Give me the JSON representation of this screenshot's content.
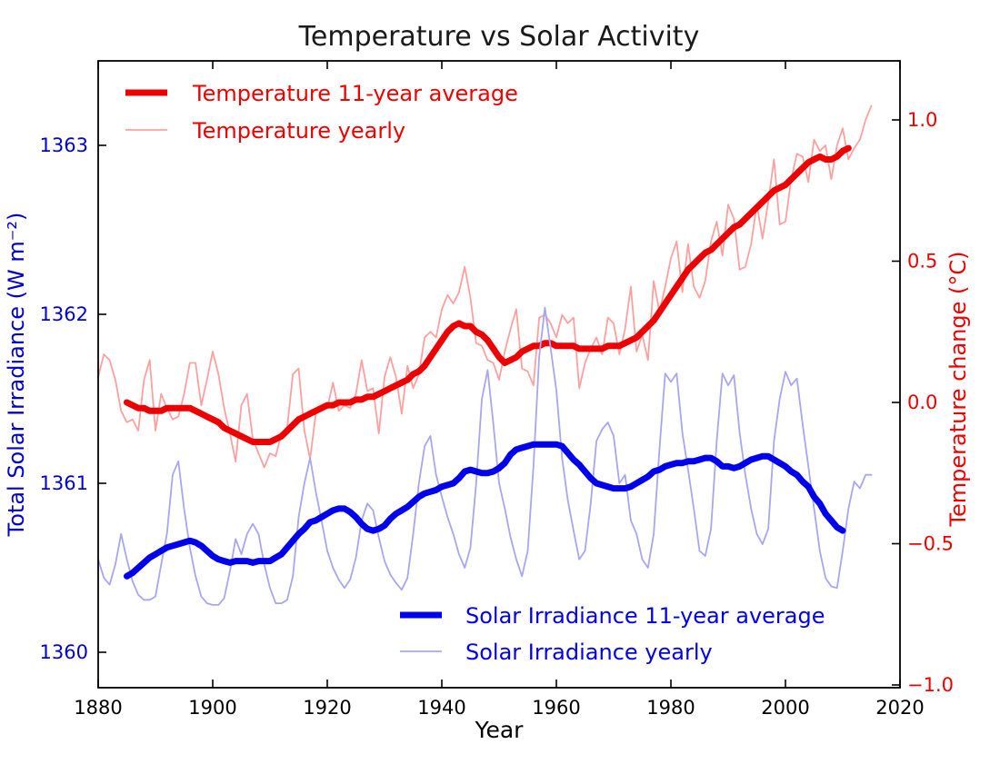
{
  "window": {
    "background": "#ffffff"
  },
  "colors": {
    "temp_avg": "#ee0000",
    "temp_yearly": "#ffa0a0",
    "tsi_avg": "#0000ee",
    "tsi_yearly": "#a6a6f2",
    "left_axis_text": "#0000cc",
    "right_axis_text": "#ee0000",
    "axis_line": "#000000",
    "title_text": "#1a1a1a"
  },
  "chart_data": {
    "type": "line",
    "title": "Temperature vs Solar Activity",
    "xlabel": "Year",
    "ylabel_left": "Total Solar Irradiance (W m⁻²)",
    "ylabel_right": "Temperature change (°C)",
    "grid": false,
    "x_range": [
      1880,
      2020
    ],
    "xticks": [
      1880,
      1900,
      1920,
      1940,
      1960,
      1980,
      2000,
      2020
    ],
    "yleft_range": [
      1359.79,
      1363.49
    ],
    "yleft_ticks": [
      1360,
      1361,
      1362,
      1363
    ],
    "yright_range": [
      -1.01,
      1.21
    ],
    "yright_ticks": [
      1.0,
      0.5,
      0.0,
      -0.5,
      -1.0
    ],
    "legend_top_entries": [
      "Temperature 11-year average",
      "Temperature yearly"
    ],
    "legend_bottom_entries": [
      "Solar Irradiance 11-year average",
      "Solar Irradiance yearly"
    ],
    "series": [
      {
        "name": "Temperature 11-year average",
        "axis": "right",
        "color": "#ee0000",
        "width": 7,
        "x_start": 1885,
        "x_step": 1,
        "values": [
          0.0,
          -0.01,
          -0.02,
          -0.02,
          -0.03,
          -0.03,
          -0.03,
          -0.02,
          -0.02,
          -0.02,
          -0.02,
          -0.02,
          -0.03,
          -0.04,
          -0.05,
          -0.06,
          -0.07,
          -0.09,
          -0.1,
          -0.11,
          -0.12,
          -0.13,
          -0.14,
          -0.14,
          -0.14,
          -0.14,
          -0.13,
          -0.12,
          -0.1,
          -0.08,
          -0.06,
          -0.05,
          -0.04,
          -0.03,
          -0.02,
          -0.01,
          -0.01,
          0.0,
          0.0,
          0.0,
          0.01,
          0.01,
          0.02,
          0.02,
          0.03,
          0.04,
          0.05,
          0.06,
          0.07,
          0.08,
          0.1,
          0.11,
          0.13,
          0.16,
          0.19,
          0.22,
          0.25,
          0.27,
          0.28,
          0.27,
          0.27,
          0.25,
          0.24,
          0.22,
          0.19,
          0.16,
          0.14,
          0.15,
          0.16,
          0.18,
          0.19,
          0.2,
          0.2,
          0.21,
          0.21,
          0.2,
          0.2,
          0.2,
          0.2,
          0.19,
          0.19,
          0.19,
          0.19,
          0.19,
          0.2,
          0.2,
          0.2,
          0.21,
          0.22,
          0.23,
          0.25,
          0.27,
          0.29,
          0.32,
          0.35,
          0.38,
          0.41,
          0.44,
          0.47,
          0.49,
          0.51,
          0.53,
          0.54,
          0.56,
          0.58,
          0.6,
          0.62,
          0.63,
          0.65,
          0.67,
          0.69,
          0.71,
          0.73,
          0.75,
          0.76,
          0.77,
          0.79,
          0.81,
          0.83,
          0.85,
          0.86,
          0.87,
          0.86,
          0.86,
          0.87,
          0.89,
          0.9
        ]
      },
      {
        "name": "Temperature yearly",
        "axis": "right",
        "color": "#ffa0a0",
        "width": 1.8,
        "x_start": 1880,
        "x_step": 1,
        "values": [
          0.09,
          0.17,
          0.15,
          0.08,
          -0.03,
          -0.07,
          -0.06,
          -0.1,
          0.08,
          0.15,
          -0.1,
          0.03,
          -0.02,
          -0.06,
          -0.05,
          0.03,
          0.14,
          0.14,
          -0.01,
          0.08,
          0.18,
          0.1,
          -0.02,
          -0.11,
          -0.21,
          -0.01,
          0.03,
          -0.13,
          -0.18,
          -0.23,
          -0.18,
          -0.19,
          -0.11,
          -0.09,
          0.1,
          0.12,
          -0.1,
          -0.2,
          -0.04,
          -0.02,
          -0.02,
          0.07,
          -0.03,
          -0.01,
          -0.02,
          0.03,
          0.15,
          0.04,
          0.05,
          -0.11,
          0.09,
          0.16,
          0.09,
          -0.04,
          0.13,
          0.05,
          0.1,
          0.23,
          0.25,
          0.23,
          0.33,
          0.38,
          0.35,
          0.39,
          0.48,
          0.37,
          0.21,
          0.2,
          0.15,
          0.14,
          0.08,
          0.18,
          0.26,
          0.33,
          0.12,
          0.11,
          0.06,
          0.3,
          0.31,
          0.28,
          0.23,
          0.31,
          0.28,
          0.3,
          0.05,
          0.14,
          0.19,
          0.23,
          0.17,
          0.3,
          0.28,
          0.17,
          0.26,
          0.41,
          0.18,
          0.24,
          0.15,
          0.43,
          0.32,
          0.41,
          0.51,
          0.57,
          0.39,
          0.56,
          0.41,
          0.37,
          0.43,
          0.57,
          0.64,
          0.52,
          0.7,
          0.65,
          0.47,
          0.48,
          0.56,
          0.7,
          0.58,
          0.71,
          0.86,
          0.63,
          0.64,
          0.79,
          0.88,
          0.87,
          0.78,
          0.93,
          0.89,
          0.91,
          0.79,
          0.91,
          0.97,
          0.86,
          0.9,
          0.93,
          1.0,
          1.05
        ]
      },
      {
        "name": "Solar Irradiance 11-year average",
        "axis": "left",
        "color": "#0000ee",
        "width": 7,
        "x_start": 1885,
        "x_step": 1,
        "values": [
          1360.45,
          1360.47,
          1360.5,
          1360.53,
          1360.56,
          1360.58,
          1360.6,
          1360.62,
          1360.63,
          1360.64,
          1360.65,
          1360.66,
          1360.65,
          1360.63,
          1360.6,
          1360.57,
          1360.55,
          1360.54,
          1360.53,
          1360.54,
          1360.54,
          1360.54,
          1360.53,
          1360.54,
          1360.54,
          1360.54,
          1360.56,
          1360.58,
          1360.62,
          1360.66,
          1360.7,
          1360.73,
          1360.77,
          1360.78,
          1360.8,
          1360.82,
          1360.84,
          1360.85,
          1360.85,
          1360.83,
          1360.8,
          1360.76,
          1360.73,
          1360.72,
          1360.73,
          1360.75,
          1360.79,
          1360.82,
          1360.84,
          1360.86,
          1360.89,
          1360.92,
          1360.94,
          1360.95,
          1360.96,
          1360.98,
          1360.99,
          1361.0,
          1361.03,
          1361.07,
          1361.08,
          1361.07,
          1361.06,
          1361.06,
          1361.07,
          1361.09,
          1361.12,
          1361.17,
          1361.2,
          1361.21,
          1361.22,
          1361.23,
          1361.23,
          1361.23,
          1361.23,
          1361.23,
          1361.22,
          1361.18,
          1361.14,
          1361.11,
          1361.07,
          1361.03,
          1361.0,
          1360.99,
          1360.98,
          1360.97,
          1360.97,
          1360.97,
          1360.98,
          1361.0,
          1361.02,
          1361.04,
          1361.07,
          1361.08,
          1361.1,
          1361.11,
          1361.12,
          1361.12,
          1361.13,
          1361.13,
          1361.14,
          1361.15,
          1361.15,
          1361.13,
          1361.1,
          1361.1,
          1361.09,
          1361.1,
          1361.12,
          1361.14,
          1361.15,
          1361.16,
          1361.16,
          1361.14,
          1361.12,
          1361.1,
          1361.07,
          1361.05,
          1361.01,
          1360.98,
          1360.92,
          1360.88,
          1360.82,
          1360.78,
          1360.74,
          1360.72
        ]
      },
      {
        "name": "Solar Irradiance yearly",
        "axis": "left",
        "color": "#a6a6f2",
        "width": 1.8,
        "x_start": 1880,
        "x_step": 1,
        "values": [
          1360.55,
          1360.44,
          1360.4,
          1360.52,
          1360.7,
          1360.55,
          1360.42,
          1360.34,
          1360.31,
          1360.31,
          1360.33,
          1360.52,
          1360.7,
          1361.05,
          1361.13,
          1360.85,
          1360.62,
          1360.45,
          1360.33,
          1360.29,
          1360.28,
          1360.28,
          1360.32,
          1360.48,
          1360.67,
          1360.58,
          1360.7,
          1360.76,
          1360.7,
          1360.52,
          1360.38,
          1360.29,
          1360.29,
          1360.31,
          1360.45,
          1360.8,
          1361.0,
          1361.15,
          1360.95,
          1360.78,
          1360.6,
          1360.5,
          1360.43,
          1360.38,
          1360.43,
          1360.56,
          1360.78,
          1360.88,
          1360.84,
          1360.68,
          1360.54,
          1360.46,
          1360.41,
          1360.37,
          1360.44,
          1360.7,
          1361.0,
          1361.22,
          1361.28,
          1361.05,
          1360.92,
          1360.8,
          1360.7,
          1360.58,
          1360.5,
          1360.62,
          1361.0,
          1361.5,
          1361.67,
          1361.35,
          1361.0,
          1360.85,
          1360.68,
          1360.55,
          1360.45,
          1360.6,
          1361.1,
          1361.75,
          1362.04,
          1361.8,
          1361.55,
          1361.15,
          1360.9,
          1360.72,
          1360.55,
          1360.6,
          1360.88,
          1361.25,
          1361.32,
          1361.36,
          1361.28,
          1361.0,
          1361.05,
          1360.78,
          1360.7,
          1360.55,
          1360.5,
          1360.7,
          1361.2,
          1361.65,
          1361.6,
          1361.65,
          1361.3,
          1361.08,
          1360.85,
          1360.6,
          1360.57,
          1360.73,
          1361.25,
          1361.65,
          1361.58,
          1361.64,
          1361.3,
          1361.05,
          1360.85,
          1360.7,
          1360.64,
          1360.73,
          1361.25,
          1361.5,
          1361.66,
          1361.58,
          1361.62,
          1361.35,
          1361.1,
          1360.85,
          1360.6,
          1360.44,
          1360.39,
          1360.38,
          1360.6,
          1360.85,
          1361.01,
          1360.97,
          1361.05,
          1361.05
        ]
      }
    ]
  }
}
